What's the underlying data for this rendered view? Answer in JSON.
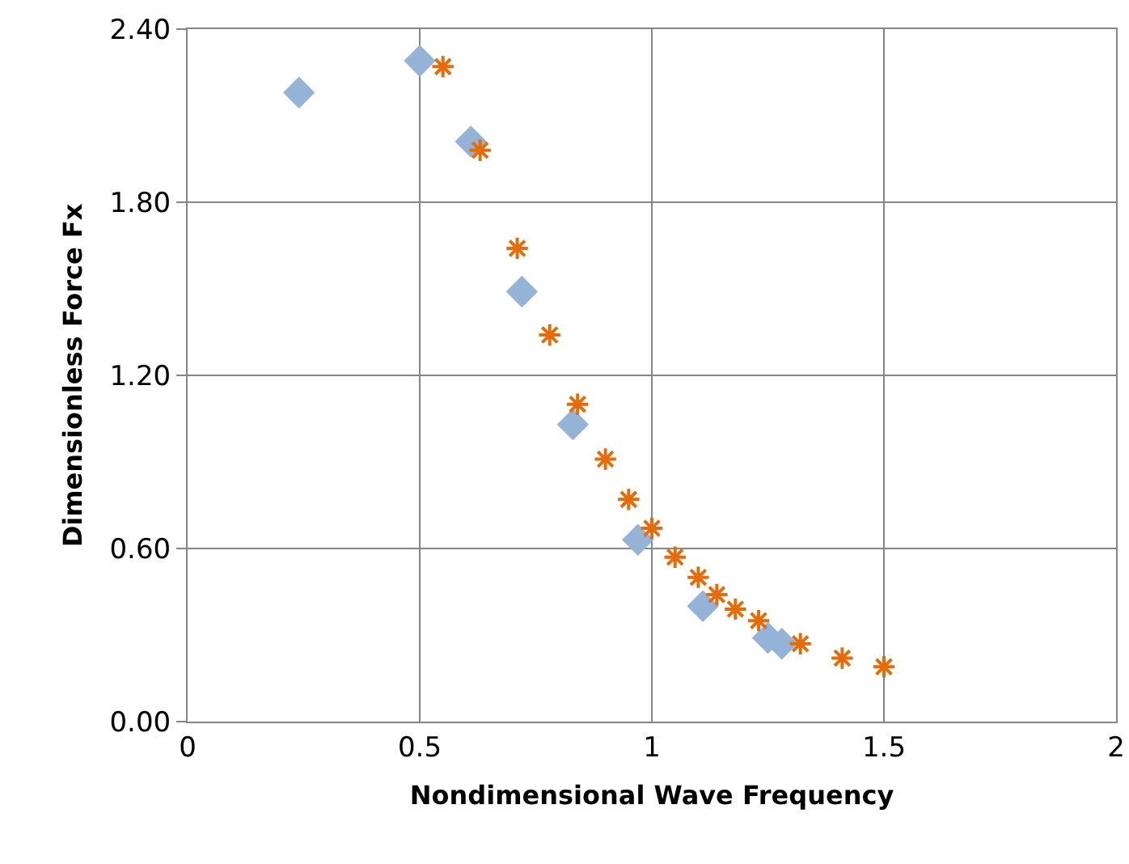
{
  "chart_data": {
    "type": "scatter",
    "xlabel": "Nondimensional Wave Frequency",
    "ylabel": "Dimensionless Force Fx",
    "xlim": [
      0,
      2
    ],
    "xticks": [
      0,
      0.5,
      1,
      1.5,
      2
    ],
    "ylim": [
      0,
      2.4
    ],
    "yticks": [
      {
        "value": 0,
        "label": "0.00"
      },
      {
        "value": 0.6,
        "label": "0.60"
      },
      {
        "value": 1.2,
        "label": "1.20"
      },
      {
        "value": 1.8,
        "label": "1.80"
      },
      {
        "value": 2.4,
        "label": "2.40"
      }
    ],
    "grid": true,
    "series": [
      {
        "color": "#95b3d7",
        "marker": "diamond",
        "x": [
          0.24,
          0.5,
          0.61,
          0.72,
          0.83,
          0.97,
          1.11,
          1.25,
          1.28
        ],
        "values": [
          2.18,
          2.29,
          2.01,
          1.49,
          1.03,
          0.63,
          0.4,
          0.29,
          0.27
        ]
      },
      {
        "color": "#e46c0a",
        "marker": "cross",
        "x": [
          0.55,
          0.63,
          0.71,
          0.78,
          0.84,
          0.9,
          0.95,
          1.0,
          1.05,
          1.1,
          1.14,
          1.18,
          1.23,
          1.32,
          1.41,
          1.5
        ],
        "values": [
          2.27,
          1.98,
          1.64,
          1.34,
          1.1,
          0.91,
          0.77,
          0.67,
          0.57,
          0.5,
          0.44,
          0.39,
          0.35,
          0.27,
          0.22,
          0.19
        ]
      }
    ]
  }
}
